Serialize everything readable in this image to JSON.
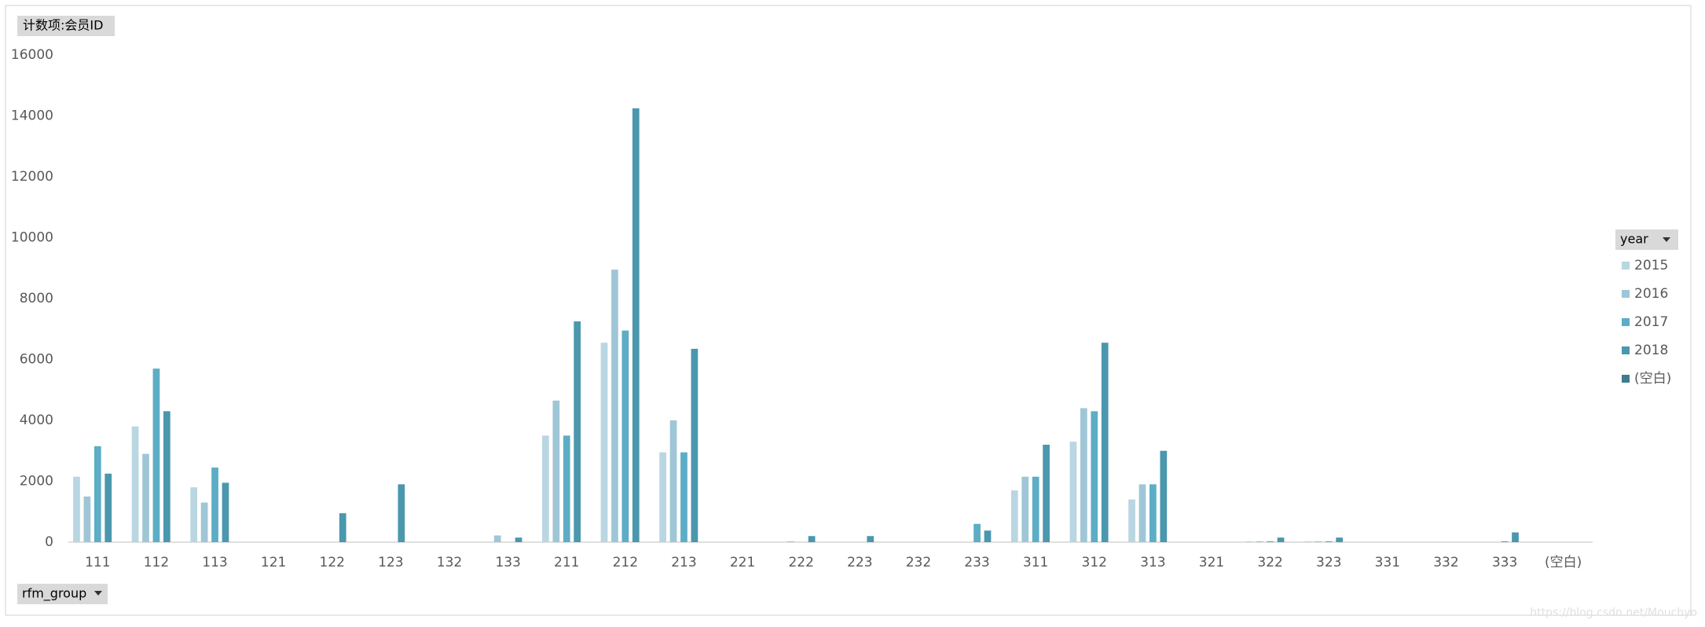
{
  "chart_data": {
    "type": "bar",
    "value_field": "计数项:会员ID",
    "legend_field": "year",
    "axis_field": "rfm_group",
    "watermark": "https://blog.csdn.net/Mouchyo",
    "categories": [
      "111",
      "112",
      "113",
      "121",
      "122",
      "123",
      "132",
      "133",
      "211",
      "212",
      "213",
      "221",
      "222",
      "223",
      "232",
      "233",
      "311",
      "312",
      "313",
      "321",
      "322",
      "323",
      "331",
      "332",
      "333",
      "(空白)"
    ],
    "series": [
      {
        "name": "2015",
        "color": "#b9d6e2",
        "values": [
          2150,
          3800,
          1800,
          null,
          null,
          null,
          null,
          null,
          3500,
          6550,
          2950,
          null,
          null,
          null,
          null,
          null,
          1700,
          3300,
          1400,
          null,
          30,
          30,
          null,
          null,
          null,
          null
        ]
      },
      {
        "name": "2016",
        "color": "#9fc6d6",
        "values": [
          1500,
          2900,
          1300,
          null,
          null,
          null,
          null,
          220,
          4650,
          8950,
          4000,
          null,
          30,
          null,
          null,
          null,
          2150,
          4400,
          1900,
          null,
          30,
          30,
          null,
          null,
          null,
          null
        ]
      },
      {
        "name": "2017",
        "color": "#5cadc5",
        "values": [
          3150,
          5700,
          2450,
          null,
          null,
          null,
          null,
          null,
          3500,
          6950,
          2950,
          null,
          null,
          null,
          null,
          600,
          2150,
          4300,
          1900,
          null,
          30,
          30,
          null,
          null,
          30,
          null
        ]
      },
      {
        "name": "2018",
        "color": "#4a97ae",
        "values": [
          2250,
          4300,
          1950,
          null,
          950,
          1900,
          null,
          150,
          7250,
          14250,
          6350,
          null,
          200,
          200,
          null,
          380,
          3200,
          6550,
          3000,
          null,
          150,
          150,
          null,
          null,
          320,
          null
        ]
      },
      {
        "name": "(空白)",
        "color": "#3f7d8c",
        "values": [
          null,
          null,
          null,
          null,
          null,
          null,
          null,
          null,
          null,
          null,
          null,
          null,
          null,
          null,
          null,
          null,
          null,
          null,
          null,
          null,
          null,
          null,
          null,
          null,
          null,
          null
        ]
      }
    ],
    "ylim": [
      0,
      16000
    ],
    "yticks": [
      0,
      2000,
      4000,
      6000,
      8000,
      10000,
      12000,
      14000,
      16000
    ],
    "grid": false,
    "legend": "right"
  }
}
